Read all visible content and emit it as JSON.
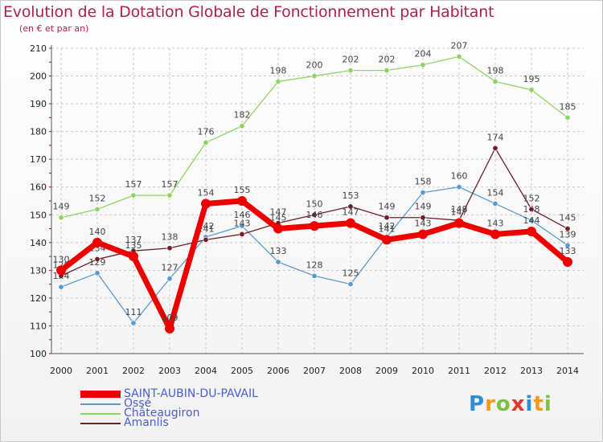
{
  "chart_data": {
    "type": "line",
    "title": "Evolution de la Dotation Globale de Fonctionnement par Habitant",
    "subtitle": "(en € et par an)",
    "xlabel": "",
    "ylabel": "",
    "ylim": [
      100,
      210
    ],
    "yticks": [
      100,
      110,
      120,
      130,
      140,
      150,
      160,
      170,
      180,
      190,
      200,
      210
    ],
    "x": [
      "2000",
      "2001",
      "2002",
      "2003",
      "2004",
      "2005",
      "2006",
      "2007",
      "2008",
      "2009",
      "2010",
      "2011",
      "2012",
      "2013",
      "2014"
    ],
    "grid": true,
    "legend_position": "bottom-left",
    "series": [
      {
        "name": "Châteaugiron",
        "color": "#8fd460",
        "values": [
          149,
          152,
          157,
          157,
          176,
          182,
          198,
          200,
          202,
          202,
          204,
          207,
          198,
          195,
          185
        ]
      },
      {
        "name": "Ossé",
        "color": "#5a9ad0",
        "values": [
          124,
          129,
          111,
          127,
          142,
          146,
          133,
          128,
          125,
          142,
          158,
          160,
          154,
          148,
          139
        ]
      },
      {
        "name": "Amanlis",
        "color": "#6e1f2a",
        "values": [
          128,
          134,
          137,
          138,
          141,
          143,
          147,
          150,
          153,
          149,
          149,
          148,
          174,
          152,
          145
        ]
      },
      {
        "name": "SAINT-AUBIN-DU-PAVAIL",
        "color": "#ee0000",
        "values": [
          130,
          140,
          135,
          109,
          154,
          155,
          145,
          146,
          147,
          141,
          143,
          147,
          143,
          144,
          133
        ]
      }
    ],
    "legend_order": [
      "SAINT-AUBIN-DU-PAVAIL",
      "Ossé",
      "Châteaugiron",
      "Amanlis"
    ]
  },
  "logo": {
    "letters": [
      "P",
      "r",
      "o",
      "x",
      "i",
      "t",
      "i"
    ],
    "colors": [
      "#2e8fd6",
      "#f29a1a",
      "#7bc142",
      "#e8352a",
      "#2e8fd6",
      "#f29a1a",
      "#7bc142"
    ]
  }
}
